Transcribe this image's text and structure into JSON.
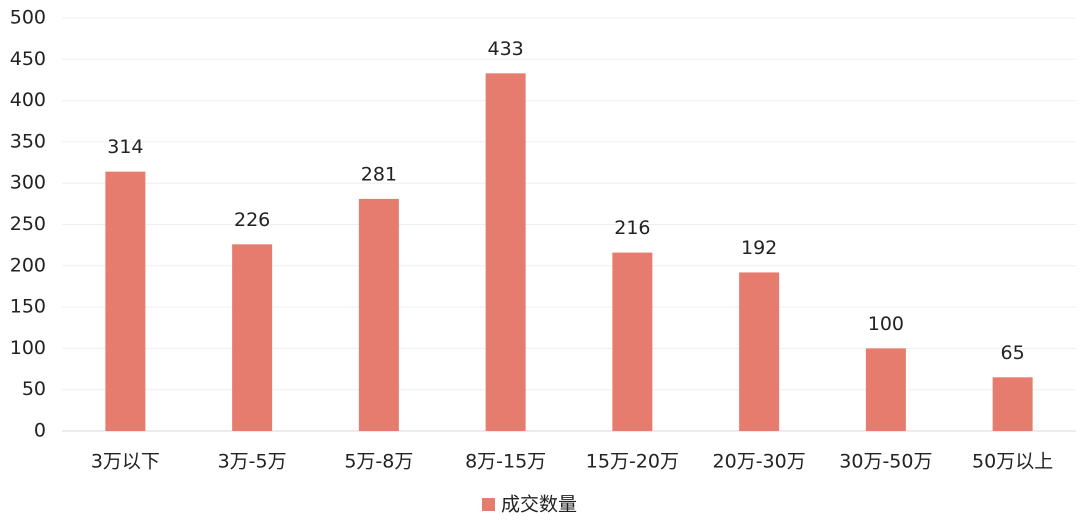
{
  "chart_data": {
    "type": "bar",
    "categories": [
      "3万以下",
      "3万-5万",
      "5万-8万",
      "8万-15万",
      "15万-20万",
      "20万-30万",
      "30万-50万",
      "50万以上"
    ],
    "series": [
      {
        "name": "成交数量",
        "color": "#e67c6e",
        "values": [
          314,
          226,
          281,
          433,
          216,
          192,
          100,
          65
        ]
      }
    ],
    "ylim": [
      0,
      500
    ],
    "yticks": [
      0,
      50,
      100,
      150,
      200,
      250,
      300,
      350,
      400,
      450,
      500
    ],
    "grid": true,
    "legend": "bottom"
  }
}
